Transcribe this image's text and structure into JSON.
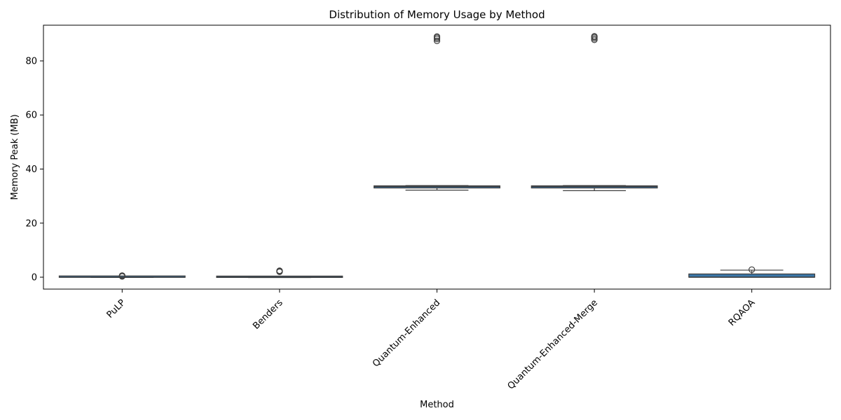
{
  "chart_data": {
    "type": "box",
    "title": "Distribution of Memory Usage by Method",
    "xlabel": "Method",
    "ylabel": "Memory Peak (MB)",
    "ylim": [
      -4.4,
      93.2
    ],
    "yticks": [
      0,
      20,
      40,
      60,
      80
    ],
    "box_color": "#3a75a6",
    "line_color": "#3f3f3f",
    "grid": false,
    "categories": [
      "PuLP",
      "Benders",
      "Quantum-Enhanced",
      "Quantum-Enhanced-Merge",
      "RQAOA"
    ],
    "boxes": [
      {
        "q1": -0.05,
        "median": -0.02,
        "q3": 0.0,
        "whisker_low": -0.1,
        "whisker_high": 0.05,
        "outliers": [
          0.3,
          0.45,
          0.6
        ]
      },
      {
        "q1": -0.1,
        "median": 0.0,
        "q3": 0.1,
        "whisker_low": -0.15,
        "whisker_high": 0.25,
        "outliers": [
          2.0,
          2.2,
          2.4
        ]
      },
      {
        "q1": 33.0,
        "median": 33.5,
        "q3": 33.8,
        "whisker_low": 32.2,
        "whisker_high": 33.9,
        "outliers": [
          87.4,
          88.1,
          88.6,
          89.0
        ]
      },
      {
        "q1": 33.0,
        "median": 33.5,
        "q3": 33.8,
        "whisker_low": 32.0,
        "whisker_high": 33.9,
        "outliers": [
          87.8,
          88.3,
          88.8,
          89.1
        ]
      },
      {
        "q1": 0.0,
        "median": 0.0,
        "q3": 1.2,
        "whisker_low": 0.0,
        "whisker_high": 2.6,
        "outliers": [
          2.8
        ]
      }
    ]
  }
}
